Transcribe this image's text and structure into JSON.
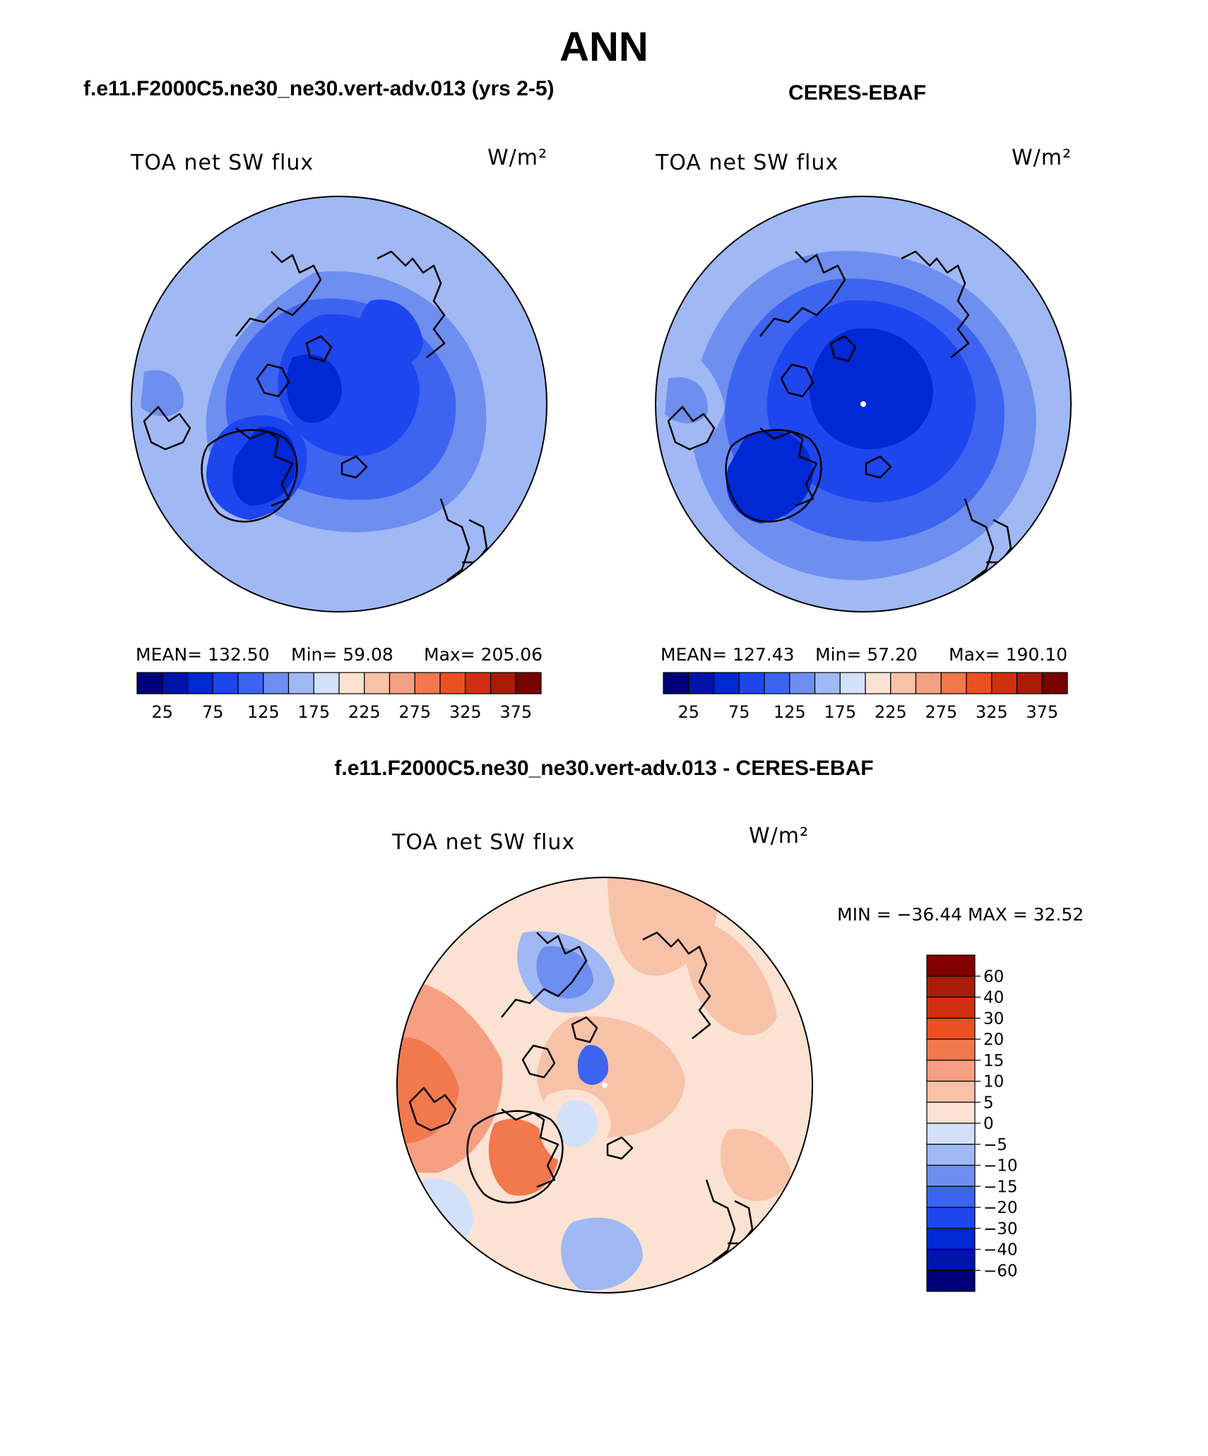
{
  "page": {
    "title": "ANN"
  },
  "panels": {
    "model": {
      "case_title": "f.e11.F2000C5.ne30_ne30.vert-adv.013 (yrs 2-5)",
      "variable": "TOA net SW flux",
      "units": "W/m²",
      "mean_label": "MEAN= 132.50",
      "min_label": "Min=   59.08",
      "max_label": "Max= 205.06",
      "mean": 132.5,
      "min": 59.08,
      "max": 205.06
    },
    "obs": {
      "case_title": "CERES-EBAF",
      "variable": "TOA net SW flux",
      "units": "W/m²",
      "mean_label": "MEAN= 127.43",
      "min_label": "Min=   57.20",
      "max_label": "Max= 190.10",
      "mean": 127.43,
      "min": 57.2,
      "max": 190.1
    },
    "diff": {
      "case_title": "f.e11.F2000C5.ne30_ne30.vert-adv.013 - CERES-EBAF",
      "variable": "TOA net SW flux",
      "units": "W/m²",
      "minmax_label": "MIN = −36.44 MAX =   32.52",
      "min": -36.44,
      "max": 32.52
    }
  },
  "colorbars": {
    "main": {
      "colors": [
        "#00007a",
        "#0014a8",
        "#0028d4",
        "#1e46ee",
        "#3c64f0",
        "#6e8ef0",
        "#a0b8f4",
        "#d2e0fa",
        "#fbe2d2",
        "#f8c2a8",
        "#f5a082",
        "#f2784e",
        "#ec5020",
        "#d03010",
        "#a81c08",
        "#780000"
      ],
      "labels": [
        "25",
        "75",
        "125",
        "175",
        "225",
        "275",
        "325",
        "375"
      ]
    },
    "diff": {
      "colors": [
        "#820000",
        "#a81c08",
        "#d03010",
        "#ec5020",
        "#f2784e",
        "#f5a082",
        "#f8c2a8",
        "#fbe2d2",
        "#d2e0fa",
        "#a0b8f4",
        "#6e8ef0",
        "#3c64f0",
        "#1e46ee",
        "#0028d4",
        "#0014a8",
        "#00007a"
      ],
      "labels": [
        "60",
        "40",
        "30",
        "20",
        "15",
        "10",
        "5",
        "0",
        "−5",
        "−10",
        "−15",
        "−20",
        "−30",
        "−40",
        "−60"
      ]
    }
  }
}
